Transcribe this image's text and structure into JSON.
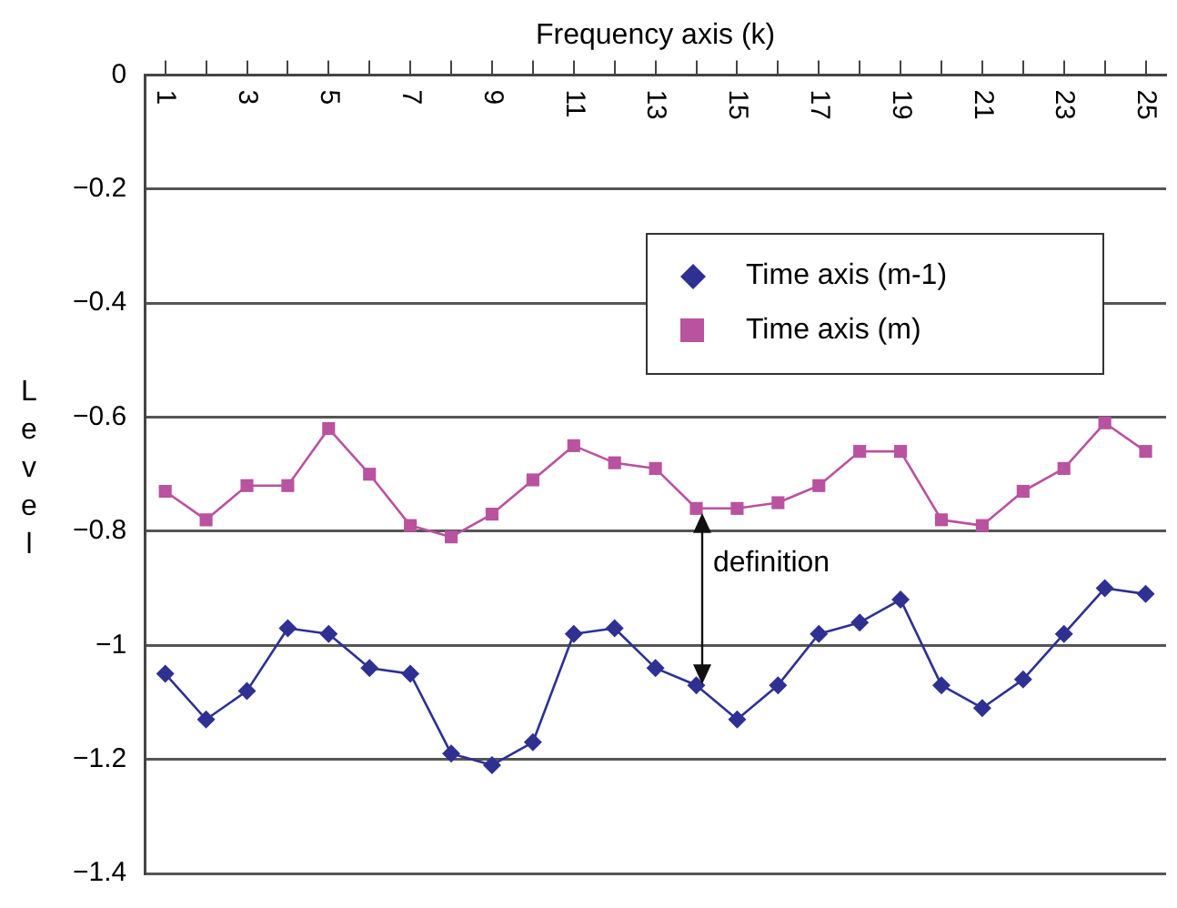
{
  "chart_data": {
    "type": "line",
    "xlabel": "Frequency axis (k)",
    "ylabel": "Level",
    "categories": [
      "1",
      null,
      "3",
      null,
      "5",
      null,
      "7",
      null,
      "9",
      null,
      "11",
      null,
      "13",
      null,
      "15",
      null,
      "17",
      null,
      "19",
      null,
      "21",
      null,
      "23",
      null,
      "25"
    ],
    "series": [
      {
        "name": "Time axis (m-1)",
        "color": "#2e3192",
        "marker": "diamond",
        "values": [
          -1.05,
          -1.13,
          -1.08,
          -0.97,
          -0.98,
          -1.04,
          -1.05,
          -1.19,
          -1.21,
          -1.17,
          -0.98,
          -0.97,
          -1.04,
          -1.07,
          -1.13,
          -1.07,
          -0.98,
          -0.96,
          -0.92,
          -1.07,
          -1.11,
          -1.06,
          -0.98,
          -0.9,
          -0.91
        ]
      },
      {
        "name": "Time axis (m)",
        "color": "#b9529f",
        "marker": "square",
        "values": [
          -0.73,
          -0.78,
          -0.72,
          -0.72,
          -0.62,
          -0.7,
          -0.79,
          -0.81,
          -0.77,
          -0.71,
          -0.65,
          -0.68,
          -0.69,
          -0.76,
          -0.76,
          -0.75,
          -0.72,
          -0.66,
          -0.66,
          -0.78,
          -0.79,
          -0.73,
          -0.69,
          -0.61,
          -0.66
        ]
      }
    ],
    "ylim": [
      -1.4,
      0
    ],
    "yticks": [
      0,
      -0.2,
      -0.4,
      -0.6,
      -0.8,
      -1.0,
      -1.2,
      -1.4
    ],
    "grid": "y",
    "legend": "top right",
    "annotations": [
      {
        "text": "definition",
        "y": -0.76
      }
    ]
  }
}
